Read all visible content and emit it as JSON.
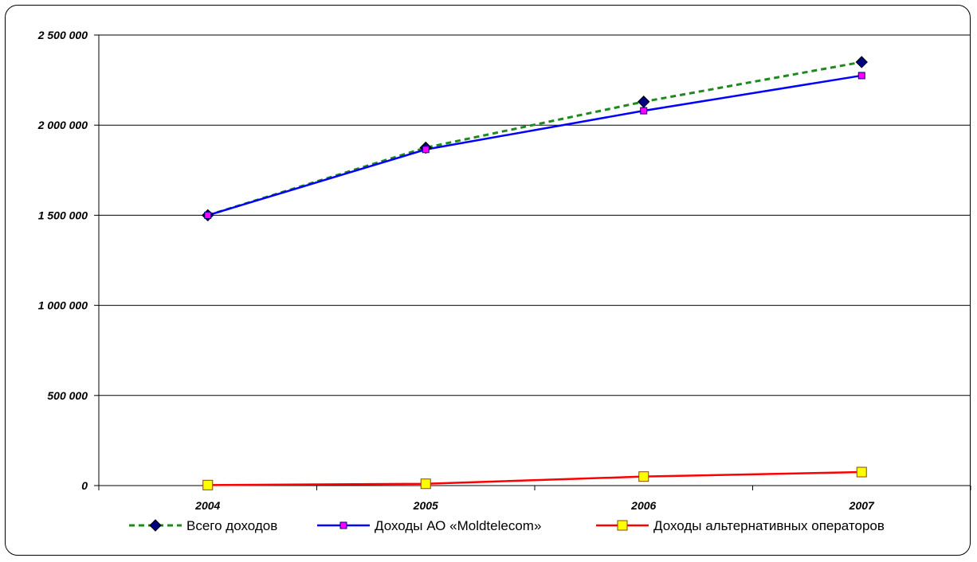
{
  "chart_data": {
    "type": "line",
    "title": "",
    "xlabel": "",
    "ylabel": "",
    "categories": [
      "2004",
      "2005",
      "2006",
      "2007"
    ],
    "ylim": [
      0,
      2500000
    ],
    "y_ticks": [
      0,
      500000,
      1000000,
      1500000,
      2000000,
      2500000
    ],
    "y_tick_labels": [
      "0",
      "500 000",
      "1 000 000",
      "1 500 000",
      "2 000 000",
      "2 500 000"
    ],
    "grid": "horizontal",
    "legend_position": "bottom",
    "series": [
      {
        "name": "Всего доходов",
        "values": [
          1500000,
          1875000,
          2130000,
          2350000
        ],
        "color": "#1e8a1e",
        "line_style": "dashed",
        "marker": "diamond",
        "marker_color": "#000080"
      },
      {
        "name": "Доходы АО «Moldtelecom»",
        "values": [
          1500000,
          1865000,
          2080000,
          2275000
        ],
        "color": "#0000ff",
        "line_style": "solid",
        "marker": "square",
        "marker_color": "#ff00ff"
      },
      {
        "name": "Доходы альтернативных операторов",
        "values": [
          3000,
          10000,
          50000,
          75000
        ],
        "color": "#ff0000",
        "line_style": "solid",
        "marker": "square",
        "marker_color": "#ffff00"
      }
    ]
  }
}
